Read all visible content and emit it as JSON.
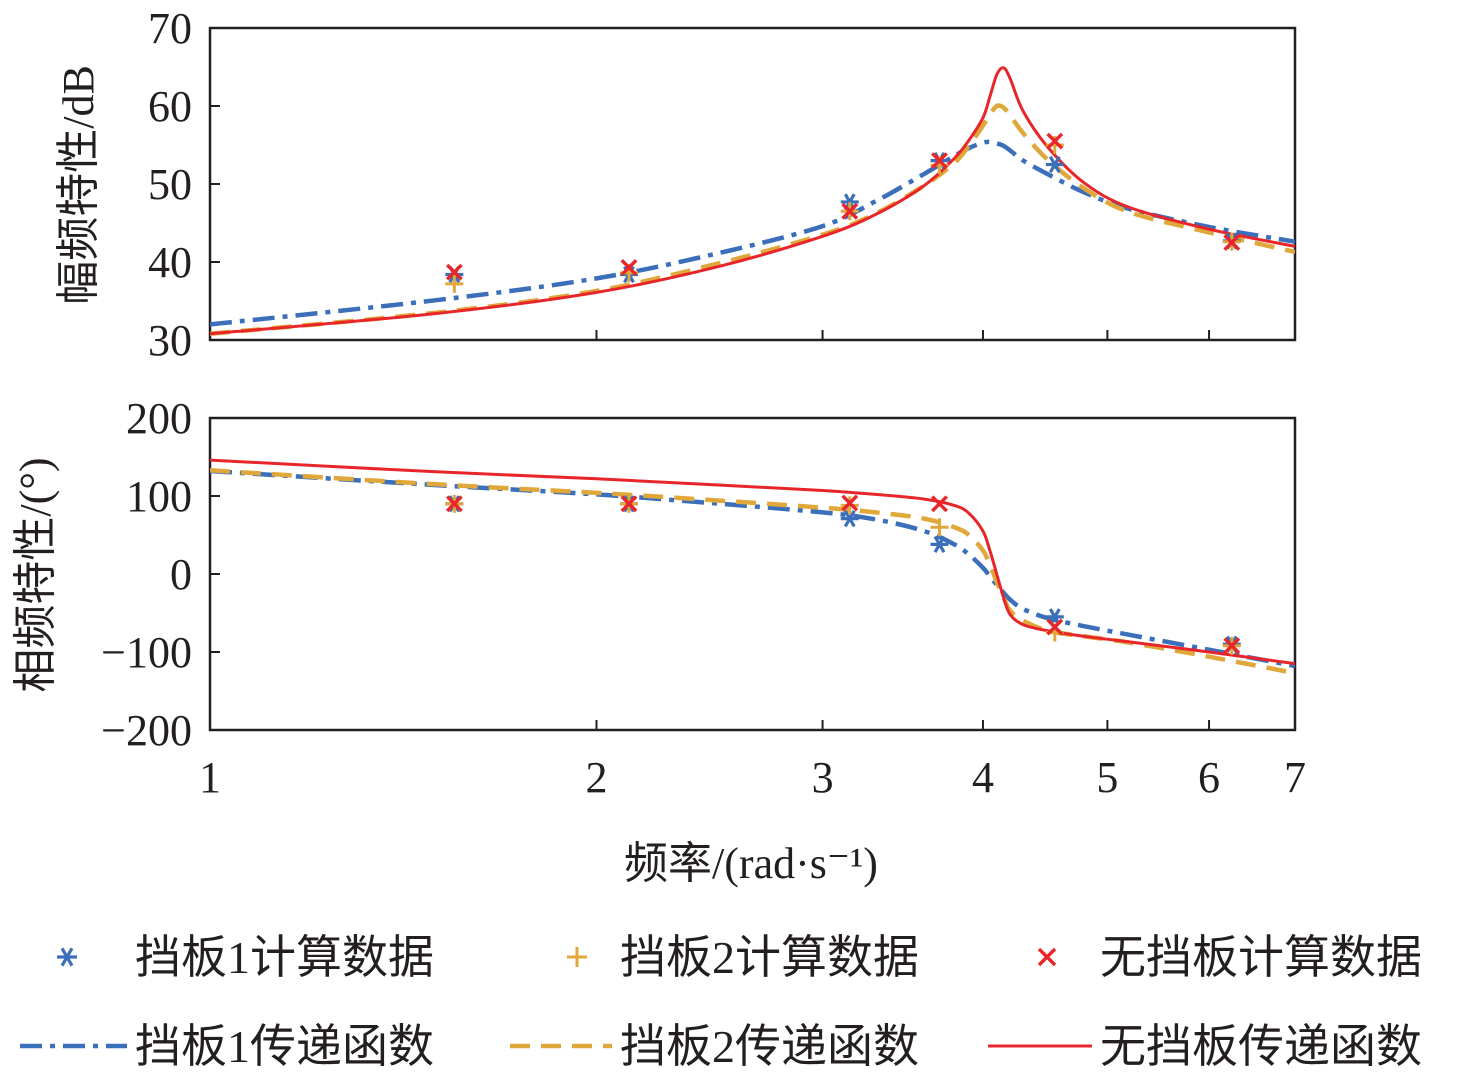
{
  "chart_data": [
    {
      "type": "line",
      "panel": "magnitude",
      "ylabel": "幅频特性/dB",
      "xscale": "log",
      "xlim": [
        1,
        7
      ],
      "ylim": [
        30,
        70
      ],
      "yticks": [
        30,
        40,
        50,
        60,
        70
      ],
      "ytick_labels": [
        "30",
        "40",
        "50",
        "60",
        "70"
      ],
      "x_curve": [
        1.0,
        1.5,
        2.0,
        2.5,
        3.0,
        3.3,
        3.6,
        3.8,
        3.9,
        4.0,
        4.05,
        4.1,
        4.15,
        4.2,
        4.3,
        4.5,
        4.8,
        5.2,
        6.0,
        7.0
      ],
      "series": [
        {
          "name": "挡板1计算数据",
          "kind": "scatter",
          "marker": "asterisk",
          "color": "#3b6fba",
          "x": [
            1.55,
            2.12,
            3.15,
            3.7,
            4.55,
            6.25
          ],
          "y": [
            38.4,
            38.4,
            47.7,
            53.0,
            52.5,
            42.7
          ]
        },
        {
          "name": "挡板2计算数据",
          "kind": "scatter",
          "marker": "plus",
          "color": "#e0a73a",
          "x": [
            1.55,
            2.12,
            3.15,
            3.7,
            4.55,
            6.25
          ],
          "y": [
            37.2,
            38.6,
            46.5,
            52.4,
            55.0,
            42.6
          ]
        },
        {
          "name": "无挡板计算数据",
          "kind": "scatter",
          "marker": "x",
          "color": "#e8262a",
          "x": [
            1.55,
            2.12,
            3.15,
            3.7,
            4.55,
            6.25
          ],
          "y": [
            38.7,
            39.3,
            46.5,
            53.0,
            55.5,
            42.5
          ]
        },
        {
          "name": "挡板1传递函数",
          "kind": "line",
          "dash": "dashdot",
          "color": "#3b6fba",
          "y": [
            32.0,
            35.1,
            37.9,
            41.2,
            44.6,
            47.8,
            51.3,
            53.6,
            54.6,
            55.3,
            55.4,
            55.2,
            54.9,
            54.3,
            53.0,
            51.2,
            48.9,
            46.8,
            44.5,
            42.6
          ]
        },
        {
          "name": "挡板2传递函数",
          "kind": "line",
          "dash": "dash",
          "color": "#e0a73a",
          "y": [
            30.8,
            33.5,
            36.3,
            39.9,
            43.5,
            46.2,
            49.8,
            52.7,
            54.9,
            57.5,
            58.9,
            60.0,
            59.8,
            58.8,
            56.5,
            53.0,
            49.4,
            46.4,
            43.8,
            41.3
          ]
        },
        {
          "name": "无挡板传递函数",
          "kind": "line",
          "dash": "solid",
          "color": "#e8262a",
          "y": [
            30.8,
            33.4,
            36.1,
            39.5,
            43.3,
            46.1,
            49.8,
            53.3,
            55.6,
            58.5,
            61.2,
            64.0,
            64.9,
            63.5,
            59.3,
            54.6,
            50.1,
            47.0,
            44.2,
            42.0
          ]
        }
      ]
    },
    {
      "type": "line",
      "panel": "phase",
      "ylabel": "相频特性/(°)",
      "xlabel": "频率/(rad·s⁻¹)",
      "xscale": "log",
      "xlim": [
        1,
        7
      ],
      "ylim": [
        -200,
        200
      ],
      "yticks": [
        -200,
        -100,
        0,
        100,
        200
      ],
      "ytick_labels": [
        "−200",
        "−100",
        "0",
        "100",
        "200"
      ],
      "xticks": [
        1,
        2,
        3,
        4,
        5,
        6,
        7
      ],
      "xtick_labels": [
        "1",
        "2",
        "3",
        "4",
        "5",
        "6",
        "7"
      ],
      "x_curve": [
        1.0,
        1.5,
        2.0,
        2.5,
        3.0,
        3.3,
        3.6,
        3.8,
        3.9,
        4.0,
        4.05,
        4.1,
        4.15,
        4.2,
        4.3,
        4.5,
        4.8,
        5.2,
        6.0,
        7.0
      ],
      "series": [
        {
          "name": "挡板1计算数据",
          "kind": "scatter",
          "marker": "asterisk",
          "color": "#3b6fba",
          "x": [
            1.55,
            2.12,
            3.15,
            3.7,
            4.55,
            6.25
          ],
          "y": [
            90,
            90,
            71,
            38,
            -55,
            -90
          ]
        },
        {
          "name": "挡板2计算数据",
          "kind": "scatter",
          "marker": "plus",
          "color": "#e0a73a",
          "x": [
            1.55,
            2.12,
            3.15,
            3.7,
            4.55,
            6.25
          ],
          "y": [
            90,
            90,
            88,
            60,
            -75,
            -92
          ]
        },
        {
          "name": "无挡板计算数据",
          "kind": "scatter",
          "marker": "x",
          "color": "#e8262a",
          "x": [
            1.55,
            2.12,
            3.15,
            3.7,
            4.55,
            6.25
          ],
          "y": [
            90,
            90,
            91,
            90,
            -68,
            -92
          ]
        },
        {
          "name": "挡板1传递函数",
          "kind": "line",
          "dash": "dashdot",
          "color": "#3b6fba",
          "y": [
            132,
            114,
            102,
            90,
            79,
            70,
            55,
            38,
            25,
            8,
            -3,
            -14,
            -24,
            -33,
            -45,
            -57,
            -67,
            -78,
            -97,
            -118
          ]
        },
        {
          "name": "挡板2传递函数",
          "kind": "line",
          "dash": "dash",
          "color": "#e0a73a",
          "y": [
            133,
            115,
            104,
            94,
            85,
            79,
            71,
            60,
            50,
            30,
            12,
            -10,
            -30,
            -47,
            -60,
            -73,
            -80,
            -88,
            -106,
            -127
          ]
        },
        {
          "name": "无挡板传递函数",
          "kind": "line",
          "dash": "solid",
          "color": "#e8262a",
          "y": [
            146,
            131,
            122,
            114,
            107,
            102,
            96,
            88,
            78,
            55,
            30,
            0,
            -30,
            -52,
            -65,
            -73,
            -80,
            -87,
            -100,
            -115
          ]
        }
      ]
    }
  ],
  "legend": {
    "items": [
      {
        "label": "挡板1计算数据",
        "type": "marker",
        "marker": "asterisk",
        "color": "#3b6fba"
      },
      {
        "label": "挡板2计算数据",
        "type": "marker",
        "marker": "plus",
        "color": "#e0a73a"
      },
      {
        "label": "无挡板计算数据",
        "type": "marker",
        "marker": "x",
        "color": "#e8262a"
      },
      {
        "label": "挡板1传递函数",
        "type": "line",
        "dash": "dashdot",
        "color": "#3b6fba"
      },
      {
        "label": "挡板2传递函数",
        "type": "line",
        "dash": "dash",
        "color": "#e0a73a"
      },
      {
        "label": "无挡板传递函数",
        "type": "line",
        "dash": "solid",
        "color": "#e8262a"
      }
    ]
  }
}
